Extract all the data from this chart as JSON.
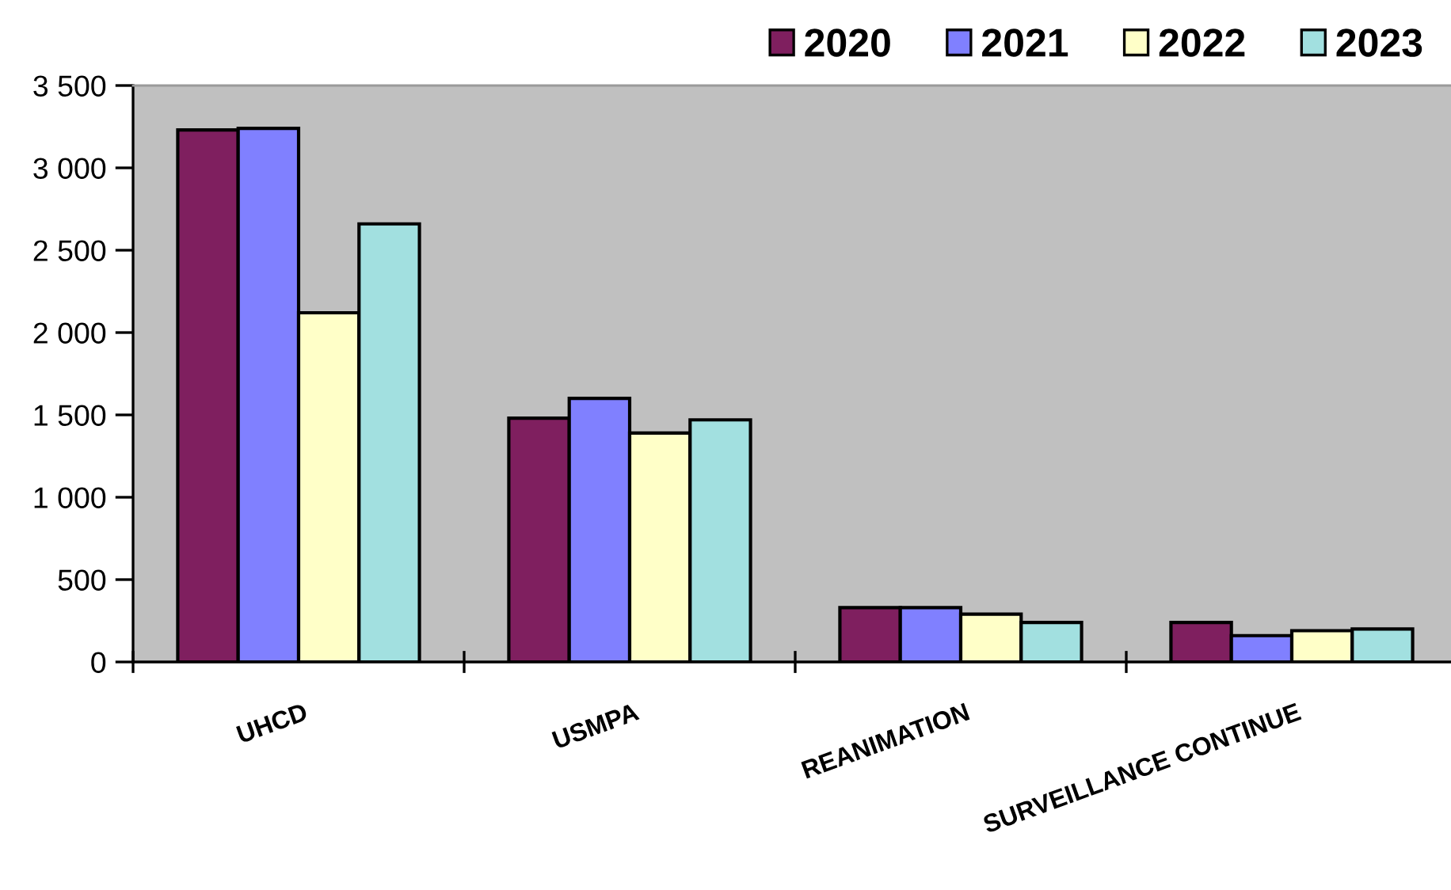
{
  "chart_data": {
    "type": "bar",
    "categories": [
      "UHCD",
      "USMPA",
      "REANIMATION",
      "SURVEILLANCE CONTINUE"
    ],
    "series": [
      {
        "name": "2020",
        "color": "#7f1f5f",
        "values": [
          3230,
          1480,
          330,
          240
        ]
      },
      {
        "name": "2021",
        "color": "#8080ff",
        "values": [
          3240,
          1600,
          330,
          160
        ]
      },
      {
        "name": "2022",
        "color": "#ffffc8",
        "values": [
          2120,
          1390,
          290,
          190
        ]
      },
      {
        "name": "2023",
        "color": "#a2e0e0",
        "values": [
          2660,
          1470,
          240,
          200
        ]
      }
    ],
    "ylim": [
      0,
      3500
    ],
    "yticks": [
      0,
      {
        "value": 500,
        "label": "500"
      },
      {
        "value": 1000,
        "label": "1 000"
      },
      {
        "value": 1500,
        "label": "1 500"
      },
      {
        "value": 2000,
        "label": "2 000"
      },
      {
        "value": 2500,
        "label": "2 500"
      },
      {
        "value": 3000,
        "label": "3 000"
      },
      {
        "value": 3500,
        "label": "3 500"
      }
    ],
    "grid": false,
    "legend": "top right"
  }
}
